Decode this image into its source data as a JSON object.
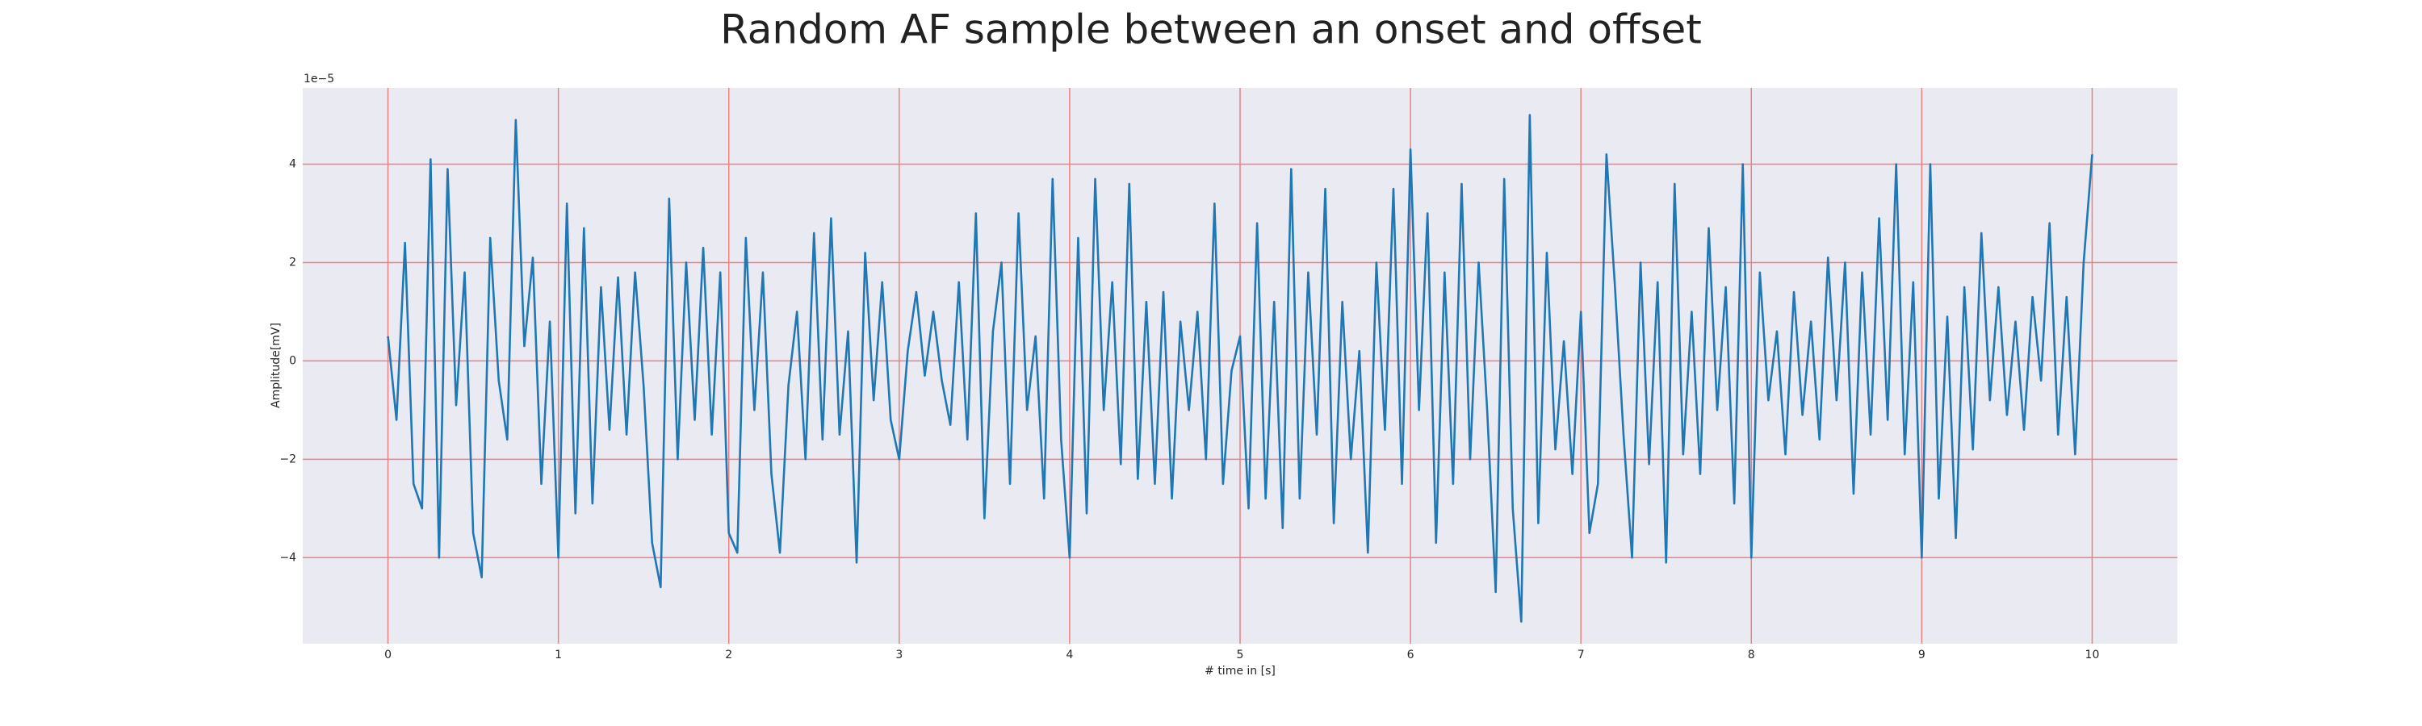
{
  "chart_data": {
    "type": "line",
    "title": "Random AF sample between an onset and offset",
    "xlabel": "# time in [s]",
    "ylabel": "Amplitude[mV]",
    "offset_text": "1e−5",
    "color": "#1f77b4",
    "grid": true,
    "grid_color": "#f08080",
    "background": "#eaeaf2",
    "xlim": [
      -0.5,
      10.5
    ],
    "ylim": [
      -5.75,
      5.55
    ],
    "xticks": [
      0,
      1,
      2,
      3,
      4,
      5,
      6,
      7,
      8,
      9,
      10
    ],
    "yticks": [
      {
        "value": -4,
        "label": "−4"
      },
      {
        "value": -2,
        "label": "−2"
      },
      0,
      2,
      4
    ],
    "x": [
      0,
      0.05,
      0.1,
      0.15,
      0.2,
      0.25,
      0.3,
      0.35,
      0.4,
      0.45,
      0.5,
      0.55,
      0.6,
      0.65,
      0.7,
      0.75,
      0.8,
      0.85,
      0.9,
      0.95,
      1,
      1.05,
      1.1,
      1.15,
      1.2,
      1.25,
      1.3,
      1.35,
      1.4,
      1.45,
      1.5,
      1.55,
      1.6,
      1.65,
      1.7,
      1.75,
      1.8,
      1.85,
      1.9,
      1.95,
      2,
      2.05,
      2.1,
      2.15,
      2.2,
      2.25,
      2.3,
      2.35,
      2.4,
      2.45,
      2.5,
      2.55,
      2.6,
      2.65,
      2.7,
      2.75,
      2.8,
      2.85,
      2.9,
      2.95,
      3,
      3.05,
      3.1,
      3.15,
      3.2,
      3.25,
      3.3,
      3.35,
      3.4,
      3.45,
      3.5,
      3.55,
      3.6,
      3.65,
      3.7,
      3.75,
      3.8,
      3.85,
      3.9,
      3.95,
      4,
      4.05,
      4.1,
      4.15,
      4.2,
      4.25,
      4.3,
      4.35,
      4.4,
      4.45,
      4.5,
      4.55,
      4.6,
      4.65,
      4.7,
      4.75,
      4.8,
      4.85,
      4.9,
      4.95,
      5,
      5.05,
      5.1,
      5.15,
      5.2,
      5.25,
      5.3,
      5.35,
      5.4,
      5.45,
      5.5,
      5.55,
      5.6,
      5.65,
      5.7,
      5.75,
      5.8,
      5.85,
      5.9,
      5.95,
      6,
      6.05,
      6.1,
      6.15,
      6.2,
      6.25,
      6.3,
      6.35,
      6.4,
      6.45,
      6.5,
      6.55,
      6.6,
      6.65,
      6.7,
      6.75,
      6.8,
      6.85,
      6.9,
      6.95,
      7,
      7.05,
      7.1,
      7.15,
      7.2,
      7.25,
      7.3,
      7.35,
      7.4,
      7.45,
      7.5,
      7.55,
      7.6,
      7.65,
      7.7,
      7.75,
      7.8,
      7.85,
      7.9,
      7.95,
      8,
      8.05,
      8.1,
      8.15,
      8.2,
      8.25,
      8.3,
      8.35,
      8.4,
      8.45,
      8.5,
      8.55,
      8.6,
      8.65,
      8.7,
      8.75,
      8.8,
      8.85,
      8.9,
      8.95,
      9,
      9.05,
      9.1,
      9.15,
      9.2,
      9.25,
      9.3,
      9.35,
      9.4,
      9.45,
      9.5,
      9.55,
      9.6,
      9.65,
      9.7,
      9.75,
      9.8,
      9.85,
      9.9,
      9.95,
      10
    ],
    "values": [
      0.5,
      -1.2,
      2.4,
      -2.5,
      -3.0,
      4.1,
      -4.0,
      3.9,
      -0.9,
      1.8,
      -3.5,
      -4.4,
      2.5,
      -0.4,
      -1.6,
      4.9,
      0.3,
      2.1,
      -2.5,
      0.8,
      -4.0,
      3.2,
      -3.1,
      2.7,
      -2.9,
      1.5,
      -1.4,
      1.7,
      -1.5,
      1.8,
      -0.5,
      -3.7,
      -4.6,
      3.3,
      -2.0,
      2.0,
      -1.2,
      2.3,
      -1.5,
      1.8,
      -3.5,
      -3.9,
      2.5,
      -1.0,
      1.8,
      -2.3,
      -3.9,
      -0.5,
      1.0,
      -2.0,
      2.6,
      -1.6,
      2.9,
      -1.5,
      0.6,
      -4.1,
      2.2,
      -0.8,
      1.6,
      -1.2,
      -2.0,
      0.2,
      1.4,
      -0.3,
      1.0,
      -0.4,
      -1.3,
      1.6,
      -1.6,
      3.0,
      -3.2,
      0.6,
      2.0,
      -2.5,
      3.0,
      -1.0,
      0.5,
      -2.8,
      3.7,
      -1.6,
      -4.0,
      2.5,
      -3.1,
      3.7,
      -1.0,
      1.6,
      -2.1,
      3.6,
      -2.4,
      1.2,
      -2.5,
      1.4,
      -2.8,
      0.8,
      -1.0,
      1.0,
      -2.0,
      3.2,
      -2.5,
      -0.2,
      0.5,
      -3.0,
      2.8,
      -2.8,
      1.2,
      -3.4,
      3.9,
      -2.8,
      1.8,
      -1.5,
      3.5,
      -3.3,
      1.2,
      -2.0,
      0.2,
      -3.9,
      2.0,
      -1.4,
      3.5,
      -2.5,
      4.3,
      -1.0,
      3.0,
      -3.7,
      1.8,
      -2.5,
      3.6,
      -2.0,
      2.0,
      -1.0,
      -4.7,
      3.7,
      -3.0,
      -5.3,
      5.0,
      -3.3,
      2.2,
      -1.8,
      0.4,
      -2.3,
      1.0,
      -3.5,
      -2.5,
      4.2,
      1.5,
      -1.5,
      -4.0,
      2.0,
      -2.1,
      1.6,
      -4.1,
      3.6,
      -1.9,
      1.0,
      -2.3,
      2.7,
      -1.0,
      1.5,
      -2.9,
      4.0,
      -4.0,
      1.8,
      -0.8,
      0.6,
      -1.9,
      1.4,
      -1.1,
      0.8,
      -1.6,
      2.1,
      -0.8,
      2.0,
      -2.7,
      1.8,
      -1.5,
      2.9,
      -1.2,
      4.0,
      -1.9,
      1.6,
      -4.0,
      4.0,
      -2.8,
      0.9,
      -3.6,
      1.5,
      -1.8,
      2.6,
      -0.8,
      1.5,
      -1.1,
      0.8,
      -1.4,
      1.3,
      -0.4,
      2.8,
      -1.5,
      1.3,
      -1.9,
      2.0,
      4.2
    ]
  }
}
